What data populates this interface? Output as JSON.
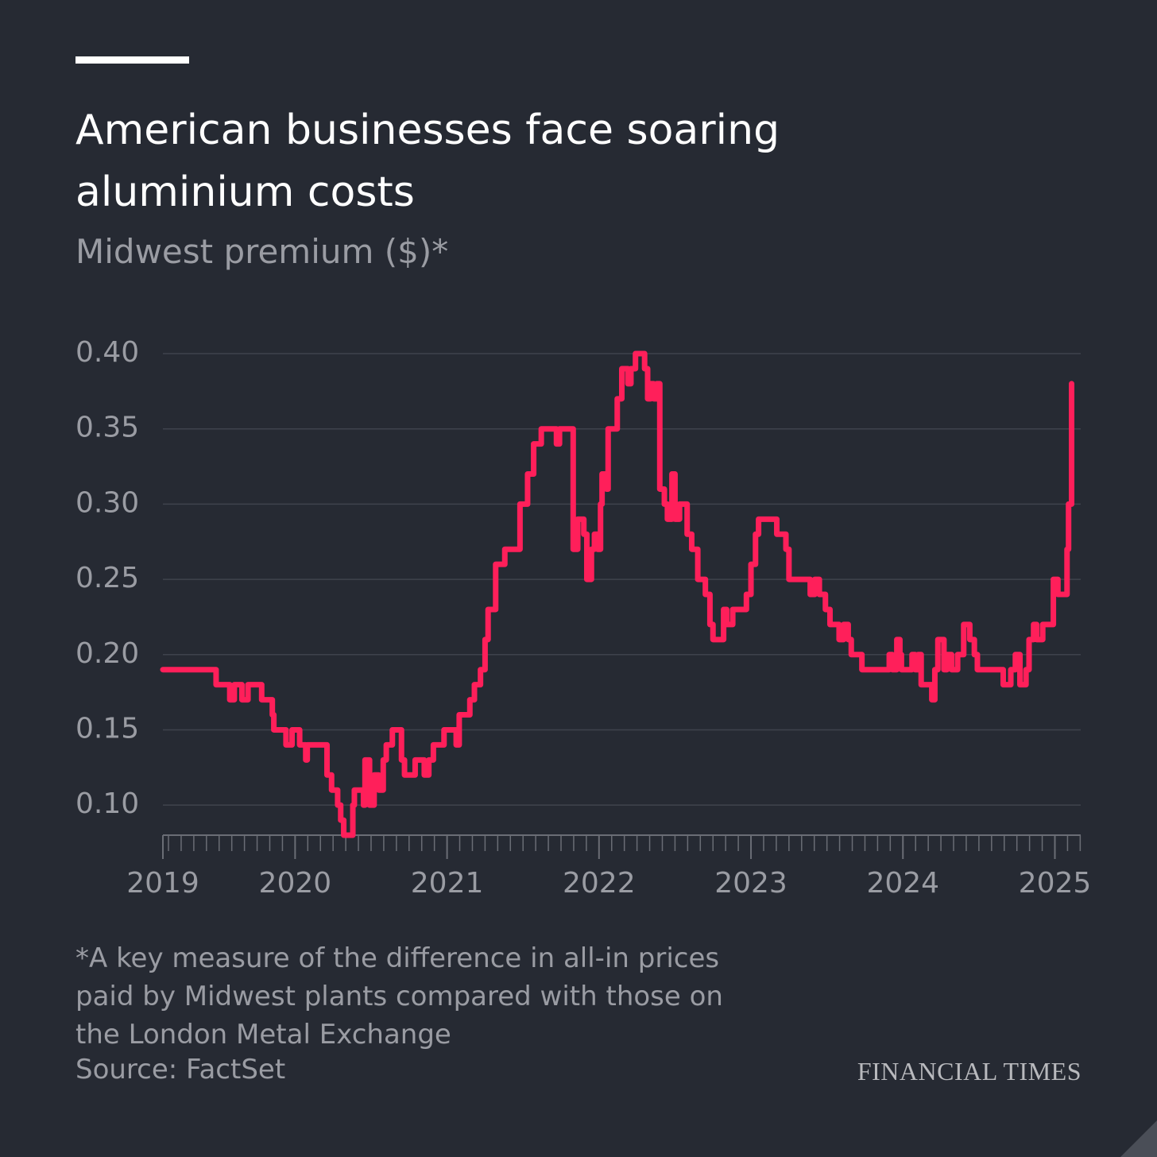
{
  "chart_data": {
    "type": "line",
    "step": "post",
    "title": "American businesses face soaring aluminium costs",
    "subtitle": "Midwest premium ($)*",
    "note": "*A key measure of the difference in all-in prices paid by Midwest plants compared with those on the London Metal Exchange",
    "source": "Source: FactSet",
    "brand": "FINANCIAL TIMES",
    "xlim": [
      2019.13,
      2025.17
    ],
    "xticks": [
      {
        "value": 2019.13,
        "label": "2019"
      },
      2020,
      2021,
      2022,
      2023,
      2024,
      2025
    ],
    "ylim": [
      0.08,
      0.4
    ],
    "yticks": [
      {
        "value": 0.1,
        "label": "0.10"
      },
      0.15,
      {
        "value": 0.2,
        "label": "0.20"
      },
      0.25,
      {
        "value": 0.3,
        "label": "0.30"
      },
      0.35,
      {
        "value": 0.4,
        "label": "0.40"
      }
    ],
    "grid": true,
    "series": [
      {
        "name": "Midwest premium",
        "color": "#ff1f5a",
        "x": [
          2019.13,
          2019.48,
          2019.57,
          2019.6,
          2019.65,
          2019.69,
          2019.78,
          2019.85,
          2019.86,
          2019.94,
          2019.98,
          2020.03,
          2020.07,
          2020.08,
          2020.21,
          2020.24,
          2020.28,
          2020.3,
          2020.32,
          2020.38,
          2020.39,
          2020.45,
          2020.46,
          2020.49,
          2020.52,
          2020.55,
          2020.58,
          2020.6,
          2020.64,
          2020.7,
          2020.72,
          2020.79,
          2020.85,
          2020.88,
          2020.91,
          2020.98,
          2021.06,
          2021.08,
          2021.15,
          2021.18,
          2021.22,
          2021.25,
          2021.27,
          2021.32,
          2021.38,
          2021.48,
          2021.53,
          2021.57,
          2021.62,
          2021.72,
          2021.74,
          2021.83,
          2021.86,
          2021.9,
          2021.92,
          2021.95,
          2021.97,
          2021.99,
          2022.01,
          2022.02,
          2022.05,
          2022.06,
          2022.12,
          2022.15,
          2022.19,
          2022.21,
          2022.24,
          2022.3,
          2022.32,
          2022.34,
          2022.36,
          2022.38,
          2022.4,
          2022.43,
          2022.45,
          2022.48,
          2022.5,
          2022.53,
          2022.58,
          2022.61,
          2022.65,
          2022.7,
          2022.73,
          2022.75,
          2022.82,
          2022.84,
          2022.88,
          2022.97,
          2023.0,
          2023.03,
          2023.05,
          2023.17,
          2023.23,
          2023.25,
          2023.39,
          2023.42,
          2023.45,
          2023.49,
          2023.52,
          2023.58,
          2023.61,
          2023.64,
          2023.66,
          2023.73,
          2023.91,
          2023.93,
          2023.96,
          2023.98,
          2023.99,
          2024.06,
          2024.08,
          2024.1,
          2024.12,
          2024.19,
          2024.21,
          2024.23,
          2024.27,
          2024.29,
          2024.32,
          2024.36,
          2024.4,
          2024.44,
          2024.47,
          2024.49,
          2024.66,
          2024.71,
          2024.74,
          2024.77,
          2024.81,
          2024.83,
          2024.86,
          2024.88,
          2024.92,
          2024.99,
          2025.02,
          2025.08,
          2025.09,
          2025.11
        ],
        "values": [
          0.19,
          0.18,
          0.17,
          0.18,
          0.17,
          0.18,
          0.17,
          0.16,
          0.15,
          0.14,
          0.15,
          0.14,
          0.13,
          0.14,
          0.12,
          0.11,
          0.1,
          0.09,
          0.08,
          0.1,
          0.11,
          0.1,
          0.13,
          0.1,
          0.12,
          0.11,
          0.13,
          0.14,
          0.15,
          0.13,
          0.12,
          0.13,
          0.12,
          0.13,
          0.14,
          0.15,
          0.14,
          0.16,
          0.17,
          0.18,
          0.19,
          0.21,
          0.23,
          0.26,
          0.27,
          0.3,
          0.32,
          0.34,
          0.35,
          0.34,
          0.35,
          0.27,
          0.29,
          0.28,
          0.25,
          0.27,
          0.28,
          0.27,
          0.3,
          0.32,
          0.31,
          0.35,
          0.37,
          0.39,
          0.38,
          0.39,
          0.4,
          0.39,
          0.37,
          0.38,
          0.37,
          0.38,
          0.31,
          0.3,
          0.29,
          0.32,
          0.29,
          0.3,
          0.28,
          0.27,
          0.25,
          0.24,
          0.22,
          0.21,
          0.23,
          0.22,
          0.23,
          0.24,
          0.26,
          0.28,
          0.29,
          0.28,
          0.27,
          0.25,
          0.24,
          0.25,
          0.24,
          0.23,
          0.22,
          0.21,
          0.22,
          0.21,
          0.2,
          0.19,
          0.2,
          0.19,
          0.21,
          0.2,
          0.19,
          0.2,
          0.19,
          0.2,
          0.18,
          0.17,
          0.19,
          0.21,
          0.19,
          0.2,
          0.19,
          0.2,
          0.22,
          0.21,
          0.2,
          0.19,
          0.18,
          0.19,
          0.2,
          0.18,
          0.19,
          0.21,
          0.22,
          0.21,
          0.22,
          0.25,
          0.24,
          0.27,
          0.3,
          0.38
        ]
      }
    ]
  }
}
